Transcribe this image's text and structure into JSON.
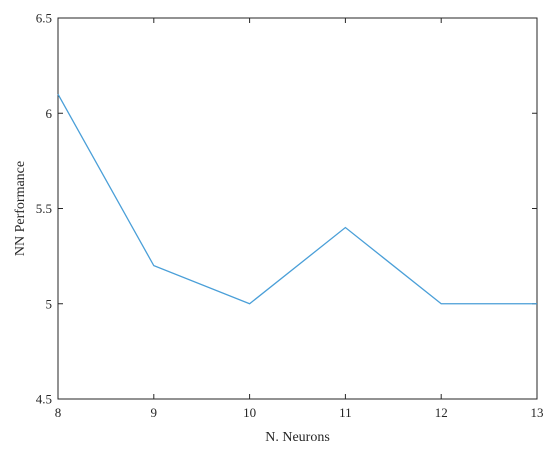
{
  "chart_data": {
    "type": "line",
    "title": "",
    "xlabel": "N. Neurons",
    "ylabel": "NN Performance",
    "xlim": [
      8,
      13
    ],
    "ylim": [
      4.5,
      6.5
    ],
    "x_ticks": [
      8,
      9,
      10,
      11,
      12,
      13
    ],
    "y_ticks": [
      4.5,
      5,
      5.5,
      6,
      6.5
    ],
    "x_tick_labels": [
      "8",
      "9",
      "10",
      "11",
      "12",
      "13"
    ],
    "y_tick_labels": [
      "4.5",
      "5",
      "5.5",
      "6",
      "6.5"
    ],
    "grid": false,
    "legend": "none",
    "series": [
      {
        "color": "#4a9fd8",
        "x": [
          8,
          9,
          10,
          11,
          12,
          13
        ],
        "y": [
          6.1,
          5.2,
          5.0,
          5.4,
          5.0,
          5.0
        ]
      }
    ]
  }
}
